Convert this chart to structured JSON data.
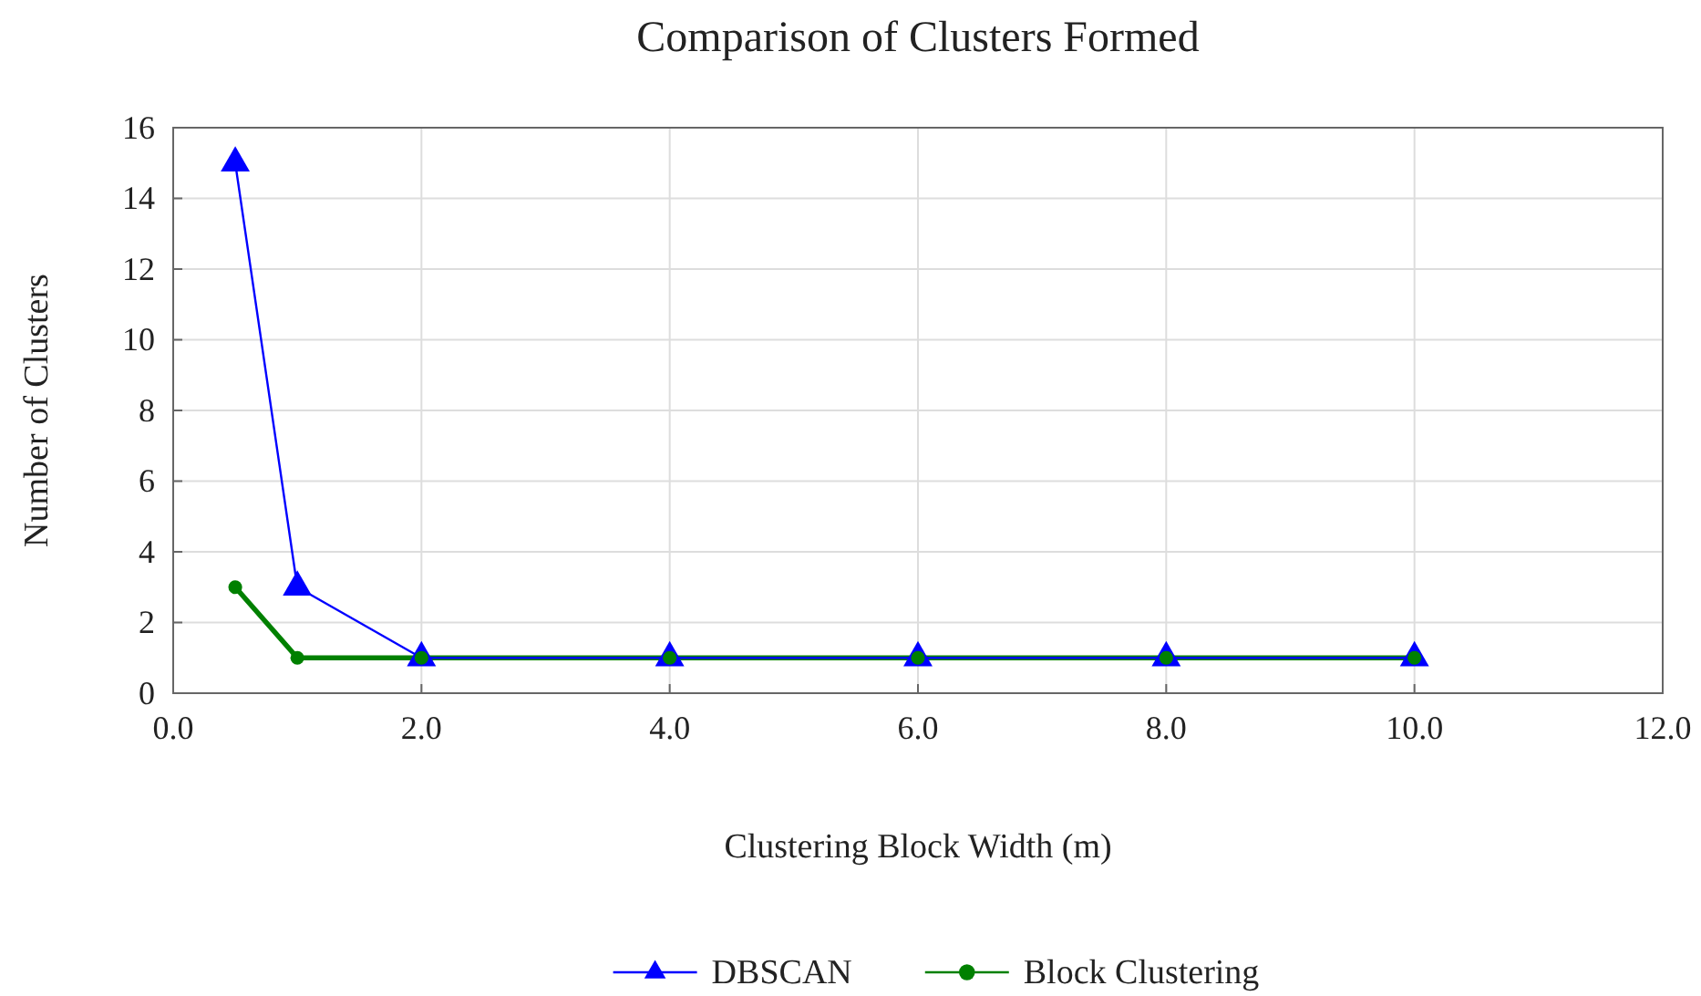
{
  "chart_data": {
    "type": "line",
    "title": "Comparison of Clusters Formed",
    "xlabel": "Clustering Block Width (m)",
    "ylabel": "Number of Clusters",
    "xlim": [
      0,
      12
    ],
    "xticks": [
      {
        "value": 0,
        "label": "0.0"
      },
      {
        "value": 2,
        "label": "2.0"
      },
      {
        "value": 4,
        "label": "4.0"
      },
      {
        "value": 6,
        "label": "6.0"
      },
      {
        "value": 8,
        "label": "8.0"
      },
      {
        "value": 10,
        "label": "10.0"
      },
      {
        "value": 12,
        "label": "12.0"
      }
    ],
    "ylim": [
      0,
      16
    ],
    "yticks": [
      0,
      2,
      4,
      6,
      8,
      10,
      12,
      14,
      16
    ],
    "grid": true,
    "legend": "bottom",
    "line_style": "solid",
    "x": [
      0.5,
      1,
      2,
      4,
      6,
      8,
      10
    ],
    "series": [
      {
        "name": "DBSCAN",
        "color": "#0000ff",
        "marker": "triangle",
        "values": [
          15,
          3,
          1,
          1,
          1,
          1,
          1
        ]
      },
      {
        "name": "Block Clustering",
        "color": "#008000",
        "marker": "circle",
        "values": [
          3,
          1,
          1,
          1,
          1,
          1,
          1
        ]
      }
    ]
  }
}
